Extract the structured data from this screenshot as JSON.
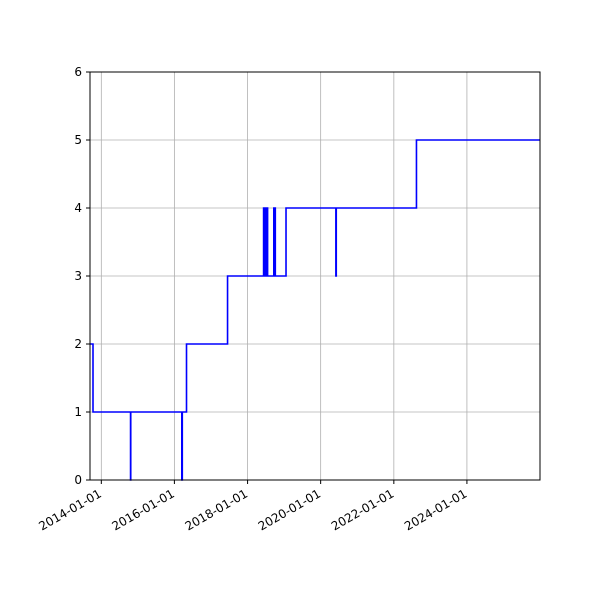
{
  "chart_data": {
    "type": "line",
    "title": "",
    "xlabel": "",
    "ylabel": "",
    "x_axis": "date",
    "xlim": [
      "2013-09-10",
      "2025-12-31"
    ],
    "ylim": [
      0,
      6
    ],
    "grid": true,
    "legend": "none",
    "line_color": "#0000ff",
    "step": true,
    "x_ticks": [
      "2014-01-01",
      "2016-01-01",
      "2018-01-01",
      "2020-01-01",
      "2022-01-01",
      "2024-01-01"
    ],
    "y_ticks": [
      "0",
      "1",
      "2",
      "3",
      "4",
      "5",
      "6"
    ],
    "series": [
      {
        "x": [
          "2013-09-10",
          "2013-10-10",
          "2013-10-10",
          "2014-10-20",
          "2014-10-20",
          "2014-10-22",
          "2014-10-22",
          "2016-03-15",
          "2016-03-15",
          "2016-03-20",
          "2016-03-20",
          "2016-05-01",
          "2016-05-01",
          "2017-06-15",
          "2017-06-15",
          "2018-06-10",
          "2018-06-10",
          "2018-06-25",
          "2018-06-25",
          "2018-07-05",
          "2018-07-05",
          "2018-07-20",
          "2018-07-20",
          "2018-09-20",
          "2018-09-20",
          "2018-10-05",
          "2018-10-05",
          "2019-01-20",
          "2019-01-20",
          "2020-06-01",
          "2020-06-01",
          "2020-06-05",
          "2020-06-05",
          "2022-08-15",
          "2022-08-15",
          "2025-12-31"
        ],
        "y": [
          2,
          2,
          1,
          1,
          0,
          0,
          1,
          1,
          0,
          0,
          1,
          1,
          2,
          2,
          3,
          3,
          4,
          4,
          3,
          3,
          4,
          4,
          3,
          3,
          4,
          4,
          3,
          3,
          4,
          4,
          3,
          3,
          4,
          4,
          5,
          5
        ]
      }
    ]
  }
}
